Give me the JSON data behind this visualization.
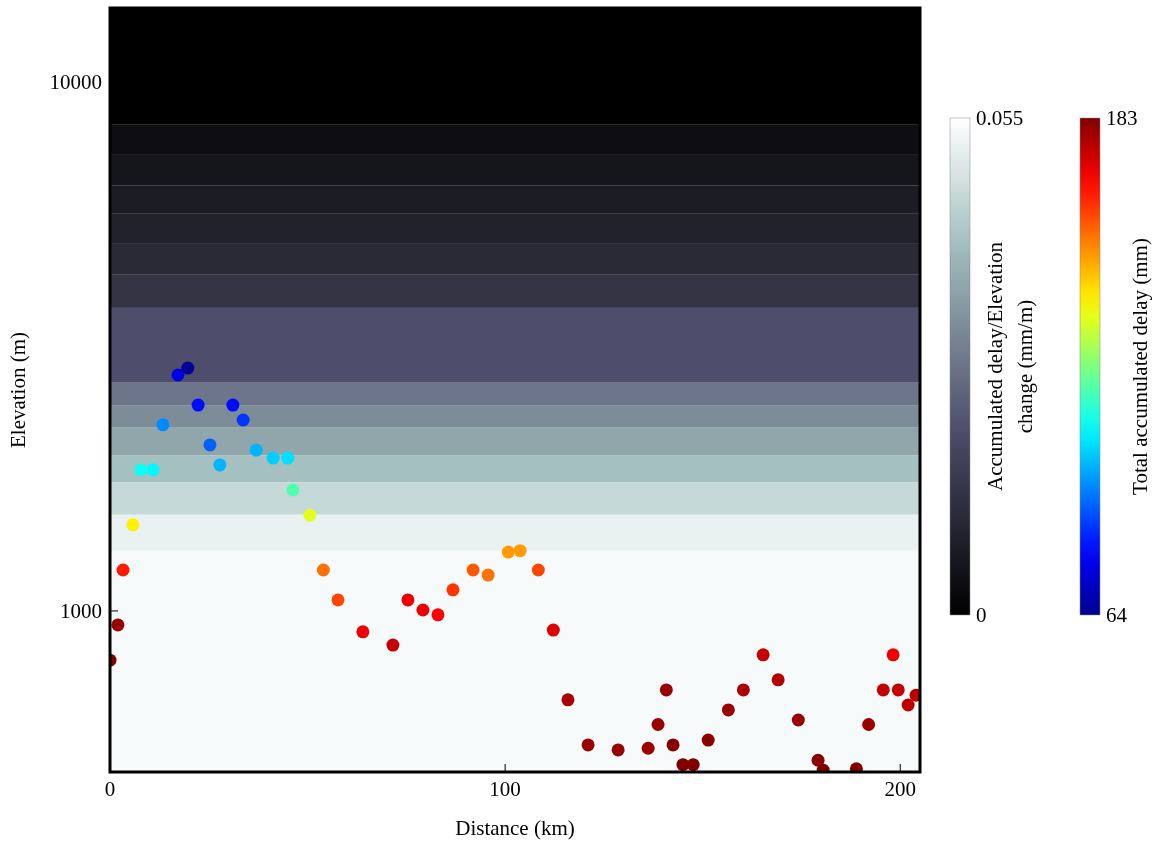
{
  "chart_data": [
    {
      "type": "scatter",
      "xlabel": "Distance (km)",
      "ylabel": "Elevation (m)",
      "log": "y",
      "marker": "circle",
      "xlim": [
        0,
        205
      ],
      "xticks": [
        0,
        100,
        200
      ],
      "ylim": [
        496,
        13800
      ],
      "yticks": [
        1000,
        10000
      ],
      "clabel": "Total accumulated delay (mm)",
      "clim": [
        64,
        183
      ],
      "cticks": [
        64,
        183
      ],
      "bands": [
        {
          "axis": "y",
          "from": 8300,
          "to": 13800,
          "color": "#000000"
        },
        {
          "axis": "y",
          "from": 7280,
          "to": 8300,
          "color": "#0d0d12"
        },
        {
          "axis": "y",
          "from": 6380,
          "to": 7280,
          "color": "#15151c"
        },
        {
          "axis": "y",
          "from": 5650,
          "to": 6380,
          "color": "#1c1c25"
        },
        {
          "axis": "y",
          "from": 4960,
          "to": 5650,
          "color": "#22222d"
        },
        {
          "axis": "y",
          "from": 4320,
          "to": 4960,
          "color": "#2a2a37"
        },
        {
          "axis": "y",
          "from": 3740,
          "to": 4320,
          "color": "#343445"
        },
        {
          "axis": "y",
          "from": 2700,
          "to": 3740,
          "color": "#4e4e6c"
        },
        {
          "axis": "y",
          "from": 2450,
          "to": 2700,
          "color": "#6c7589"
        },
        {
          "axis": "y",
          "from": 2220,
          "to": 2450,
          "color": "#7c8c99"
        },
        {
          "axis": "y",
          "from": 1970,
          "to": 2220,
          "color": "#90a6ab"
        },
        {
          "axis": "y",
          "from": 1750,
          "to": 1970,
          "color": "#a4c0c0"
        },
        {
          "axis": "y",
          "from": 1520,
          "to": 1750,
          "color": "#c6d9d9"
        },
        {
          "axis": "y",
          "from": 1300,
          "to": 1520,
          "color": "#e9f1f1"
        },
        {
          "axis": "y",
          "from": 496,
          "to": 1300,
          "color": "#f7fafa"
        }
      ],
      "series": [
        {
          "x": [
            0,
            2,
            3.3,
            5.8,
            7.8,
            10.9,
            13.4,
            17.2,
            19.7,
            22.3,
            25.3,
            27.8,
            31.1,
            33.7,
            37,
            41.3,
            45,
            46.3,
            50.6,
            54,
            57.7,
            64,
            71.6,
            75.4,
            79.2,
            83,
            86.8,
            91.9,
            95.7,
            100.8,
            103.8,
            108.4,
            112.2,
            115.9,
            121,
            128.6,
            136.2,
            138.7,
            140.8,
            142.5,
            145,
            147.6,
            151.4,
            156.5,
            160.3,
            165.3,
            169.1,
            174.2,
            179.2,
            180.5,
            188.9,
            192,
            195.7,
            198.2,
            199.5,
            202,
            204
          ],
          "values": [
            807,
            941,
            1195,
            1455,
            1848,
            1848,
            2248,
            2794,
            2878,
            2450,
            2060,
            1888,
            2450,
            2296,
            2013,
            1945,
            1945,
            1693,
            1517,
            1195,
            1049,
            913,
            862,
            1049,
            1004,
            983,
            1096,
            1195,
            1169,
            1292,
            1300,
            1195,
            920,
            679,
            558,
            546,
            550,
            610,
            709,
            558,
            512,
            512,
            570,
            650,
            709,
            826,
            741,
            622,
            522,
            500,
            503,
            610,
            709,
            826,
            709,
            664,
            693
          ],
          "cvalues": [
            183,
            180,
            165,
            140,
            110,
            108,
            95,
            75,
            65,
            80,
            90,
            100,
            80,
            85,
            100,
            103,
            105,
            118,
            135,
            155,
            160,
            170,
            175,
            170,
            170,
            168,
            162,
            158,
            155,
            150,
            150,
            160,
            172,
            178,
            180,
            180,
            180,
            180,
            180,
            182,
            183,
            183,
            182,
            180,
            178,
            175,
            177,
            180,
            182,
            183,
            183,
            180,
            175,
            170,
            175,
            176,
            176
          ]
        }
      ]
    },
    {
      "type": "other",
      "clabel": "Accumulated delay/Elevation change (mm/m)",
      "annotations": [
        "0.055",
        "0"
      ]
    }
  ]
}
